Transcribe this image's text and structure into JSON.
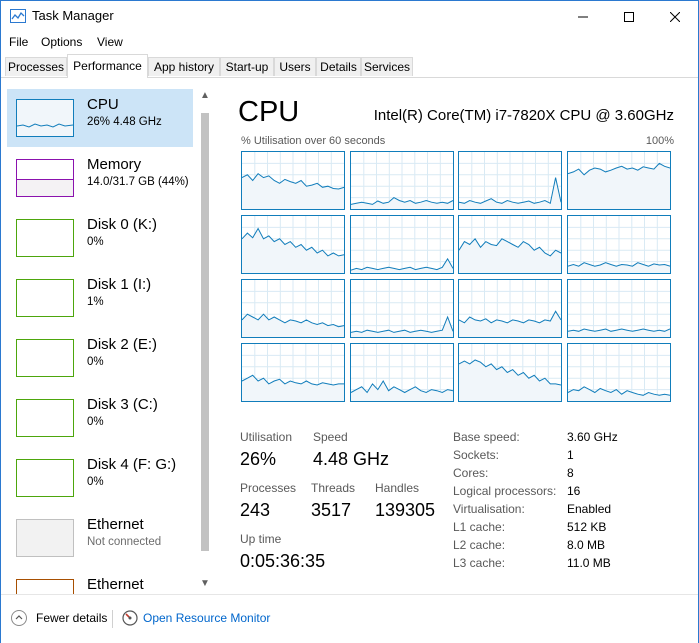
{
  "window": {
    "title": "Task Manager"
  },
  "menu": [
    "File",
    "Options",
    "View"
  ],
  "tabs": [
    "Processes",
    "Performance",
    "App history",
    "Start-up",
    "Users",
    "Details",
    "Services"
  ],
  "active_tab": "Performance",
  "sidebar": {
    "items": [
      {
        "name": "CPU",
        "sub": "26% 4.48 GHz",
        "color": "#117dbb",
        "fill": "#f1f6fa"
      },
      {
        "name": "Memory",
        "sub": "14.0/31.7 GB (44%)",
        "color": "#8b12ae",
        "fill": "#f4f2f4"
      },
      {
        "name": "Disk 0 (K:)",
        "sub": "0%",
        "color": "#4da60c",
        "fill": "#ffffff"
      },
      {
        "name": "Disk 1 (I:)",
        "sub": "1%",
        "color": "#4da60c",
        "fill": "#ffffff"
      },
      {
        "name": "Disk 2 (E:)",
        "sub": "0%",
        "color": "#4da60c",
        "fill": "#ffffff"
      },
      {
        "name": "Disk 3 (C:)",
        "sub": "0%",
        "color": "#4da60c",
        "fill": "#ffffff"
      },
      {
        "name": "Disk 4 (F: G:)",
        "sub": "0%",
        "color": "#4da60c",
        "fill": "#ffffff"
      },
      {
        "name": "Ethernet",
        "sub": "Not connected",
        "color": "#c0c0c0",
        "fill": "#f2f2f2"
      },
      {
        "name": "Ethernet",
        "sub": "",
        "color": "#a74f01",
        "fill": "#ffffff"
      }
    ]
  },
  "main": {
    "title": "CPU",
    "cpu_name": "Intel(R) Core(TM) i7-7820X CPU @ 3.60GHz",
    "graph_label": "% Utilisation over 60 seconds",
    "graph_max": "100%",
    "cores": [
      [
        0.55,
        0.6,
        0.5,
        0.62,
        0.55,
        0.58,
        0.5,
        0.45,
        0.52,
        0.48,
        0.45,
        0.5,
        0.4,
        0.42,
        0.45,
        0.38,
        0.4,
        0.36,
        0.35,
        0.38
      ],
      [
        0.08,
        0.1,
        0.12,
        0.1,
        0.08,
        0.14,
        0.1,
        0.12,
        0.2,
        0.15,
        0.12,
        0.15,
        0.1,
        0.12,
        0.15,
        0.12,
        0.1,
        0.12,
        0.1,
        0.15
      ],
      [
        0.12,
        0.1,
        0.15,
        0.12,
        0.1,
        0.14,
        0.18,
        0.12,
        0.1,
        0.15,
        0.12,
        0.1,
        0.12,
        0.14,
        0.1,
        0.12,
        0.15,
        0.1,
        0.55,
        0.12
      ],
      [
        0.62,
        0.65,
        0.7,
        0.6,
        0.68,
        0.72,
        0.7,
        0.65,
        0.68,
        0.72,
        0.75,
        0.7,
        0.72,
        0.68,
        0.74,
        0.72,
        0.7,
        0.8,
        0.75,
        0.72
      ],
      [
        0.6,
        0.7,
        0.62,
        0.78,
        0.6,
        0.65,
        0.55,
        0.6,
        0.5,
        0.55,
        0.45,
        0.5,
        0.4,
        0.45,
        0.35,
        0.4,
        0.3,
        0.35,
        0.3,
        0.32
      ],
      [
        0.05,
        0.08,
        0.06,
        0.1,
        0.08,
        0.06,
        0.08,
        0.1,
        0.08,
        0.06,
        0.08,
        0.1,
        0.06,
        0.08,
        0.1,
        0.08,
        0.06,
        0.1,
        0.25,
        0.08
      ],
      [
        0.4,
        0.55,
        0.5,
        0.6,
        0.45,
        0.55,
        0.5,
        0.48,
        0.6,
        0.55,
        0.5,
        0.45,
        0.55,
        0.5,
        0.4,
        0.45,
        0.35,
        0.3,
        0.4,
        0.35
      ],
      [
        0.12,
        0.15,
        0.12,
        0.18,
        0.15,
        0.12,
        0.14,
        0.18,
        0.15,
        0.12,
        0.15,
        0.14,
        0.12,
        0.18,
        0.15,
        0.12,
        0.16,
        0.14,
        0.15,
        0.12
      ],
      [
        0.3,
        0.4,
        0.35,
        0.3,
        0.4,
        0.3,
        0.35,
        0.3,
        0.25,
        0.3,
        0.28,
        0.25,
        0.3,
        0.25,
        0.22,
        0.25,
        0.2,
        0.22,
        0.18,
        0.2
      ],
      [
        0.08,
        0.1,
        0.08,
        0.12,
        0.1,
        0.08,
        0.1,
        0.12,
        0.08,
        0.1,
        0.12,
        0.08,
        0.1,
        0.12,
        0.1,
        0.08,
        0.1,
        0.12,
        0.35,
        0.1
      ],
      [
        0.3,
        0.25,
        0.35,
        0.3,
        0.28,
        0.32,
        0.25,
        0.3,
        0.28,
        0.25,
        0.3,
        0.28,
        0.25,
        0.3,
        0.28,
        0.25,
        0.3,
        0.28,
        0.45,
        0.3
      ],
      [
        0.1,
        0.12,
        0.1,
        0.14,
        0.12,
        0.1,
        0.12,
        0.14,
        0.1,
        0.12,
        0.14,
        0.12,
        0.1,
        0.12,
        0.14,
        0.12,
        0.1,
        0.12,
        0.1,
        0.14
      ],
      [
        0.35,
        0.4,
        0.45,
        0.35,
        0.4,
        0.3,
        0.35,
        0.38,
        0.3,
        0.35,
        0.32,
        0.3,
        0.35,
        0.3,
        0.28,
        0.32,
        0.3,
        0.28,
        0.3,
        0.3
      ],
      [
        0.15,
        0.2,
        0.25,
        0.15,
        0.3,
        0.2,
        0.35,
        0.18,
        0.25,
        0.2,
        0.15,
        0.2,
        0.25,
        0.18,
        0.15,
        0.2,
        0.18,
        0.15,
        0.2,
        0.18
      ],
      [
        0.65,
        0.7,
        0.65,
        0.72,
        0.68,
        0.6,
        0.65,
        0.55,
        0.6,
        0.5,
        0.55,
        0.45,
        0.5,
        0.4,
        0.45,
        0.35,
        0.4,
        0.3,
        0.3,
        0.28
      ],
      [
        0.15,
        0.2,
        0.18,
        0.25,
        0.2,
        0.15,
        0.22,
        0.18,
        0.15,
        0.2,
        0.12,
        0.18,
        0.15,
        0.12,
        0.1,
        0.15,
        0.12,
        0.1,
        0.12,
        0.1
      ]
    ],
    "stats": {
      "utilisation_label": "Utilisation",
      "utilisation": "26%",
      "speed_label": "Speed",
      "speed": "4.48 GHz",
      "processes_label": "Processes",
      "processes": "243",
      "threads_label": "Threads",
      "threads": "3517",
      "handles_label": "Handles",
      "handles": "139305",
      "uptime_label": "Up time",
      "uptime": "0:05:36:35"
    },
    "specs": [
      {
        "k": "Base speed:",
        "v": "3.60 GHz"
      },
      {
        "k": "Sockets:",
        "v": "1"
      },
      {
        "k": "Cores:",
        "v": "8"
      },
      {
        "k": "Logical processors:",
        "v": "16"
      },
      {
        "k": "Virtualisation:",
        "v": "Enabled"
      },
      {
        "k": "L1 cache:",
        "v": "512 KB"
      },
      {
        "k": "L2 cache:",
        "v": "8.0 MB"
      },
      {
        "k": "L3 cache:",
        "v": "11.0 MB"
      }
    ]
  },
  "footer": {
    "fewer": "Fewer details",
    "resource": "Open Resource Monitor"
  }
}
